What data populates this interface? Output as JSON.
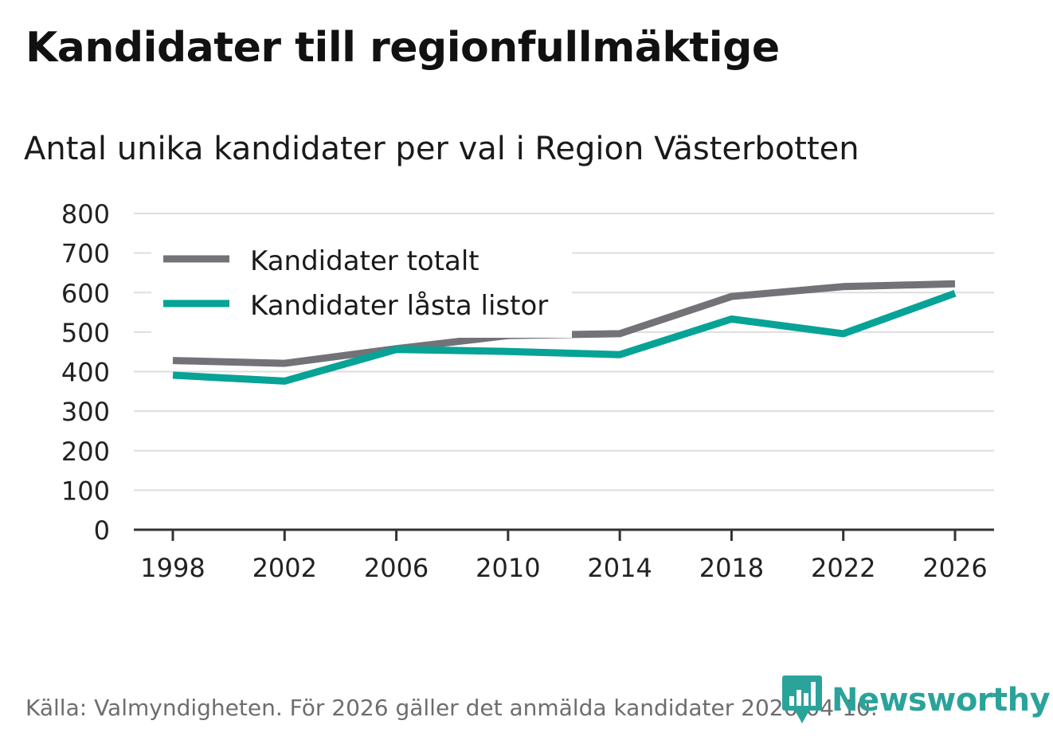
{
  "colors": {
    "total": "#737278",
    "locked": "#06a396",
    "grid": "#dddddd",
    "axis": "#333333",
    "brand": "#2aa39a"
  },
  "source": "Källa: Valmyndigheten. För 2026 gäller det anmälda kandidater 2026-04-10.",
  "brand": {
    "name": "Newsworthy",
    "icon": "bar-chart-speech-bubble-icon"
  },
  "chart_data": {
    "type": "line",
    "title": "Kandidater till regionfullmäktige",
    "subtitle": "Antal unika kandidater per val i Region Västerbotten",
    "xlabel": "",
    "ylabel": "",
    "x": [
      "1998",
      "2002",
      "2006",
      "2010",
      "2014",
      "2018",
      "2022",
      "2026"
    ],
    "ylim": [
      0,
      800
    ],
    "yticks": [
      "0",
      "100",
      "200",
      "300",
      "400",
      "500",
      "600",
      "700",
      "800"
    ],
    "grid": true,
    "legend_position": "top-left",
    "series": [
      {
        "name": "Kandidater totalt",
        "color": "#737278",
        "values": [
          428,
          421,
          458,
          491,
          496,
          590,
          615,
          622
        ]
      },
      {
        "name": "Kandidater låsta listor",
        "color": "#06a396",
        "values": [
          391,
          376,
          456,
          451,
          443,
          533,
          496,
          598
        ]
      }
    ]
  }
}
